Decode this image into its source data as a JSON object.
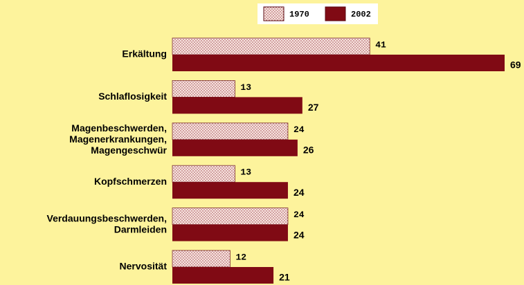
{
  "chart_data": {
    "type": "bar",
    "orientation": "horizontal",
    "categories": [
      "Erkältung",
      "Schlaflosigkeit",
      "Magenbeschwerden,\nMagenerkrankungen,\nMagengeschwür",
      "Kopfschmerzen",
      "Verdauungsbeschwerden,\nDarmleiden",
      "Nervosität"
    ],
    "series": [
      {
        "name": "1970",
        "color": "#f4d6d6",
        "values": [
          41,
          13,
          24,
          13,
          24,
          12
        ]
      },
      {
        "name": "2002",
        "color": "#800a14",
        "values": [
          69,
          27,
          26,
          24,
          24,
          21
        ]
      }
    ],
    "legend": "top"
  }
}
